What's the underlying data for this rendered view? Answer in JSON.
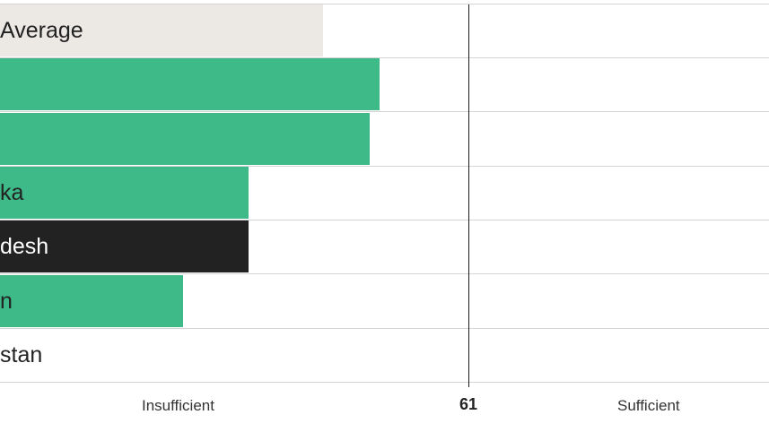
{
  "chart_data": {
    "type": "bar",
    "orientation": "horizontal",
    "categories": [
      "Average",
      "",
      "",
      "ka",
      "desh",
      "n",
      "stan"
    ],
    "bar_fraction_of_threshold": [
      0.69,
      0.81,
      0.79,
      0.53,
      0.53,
      0.39,
      0.0
    ],
    "colors": [
      "#ece9e4",
      "#3dba88",
      "#3dba88",
      "#3dba88",
      "#222222",
      "#3dba88",
      "#3dba88"
    ],
    "label_colors": [
      "#222222",
      "#222222",
      "#222222",
      "#222222",
      "#ffffff",
      "#222222",
      "#222222"
    ],
    "threshold": {
      "value": "61"
    },
    "zones": {
      "left": "Insufficient",
      "right": "Sufficient"
    }
  }
}
